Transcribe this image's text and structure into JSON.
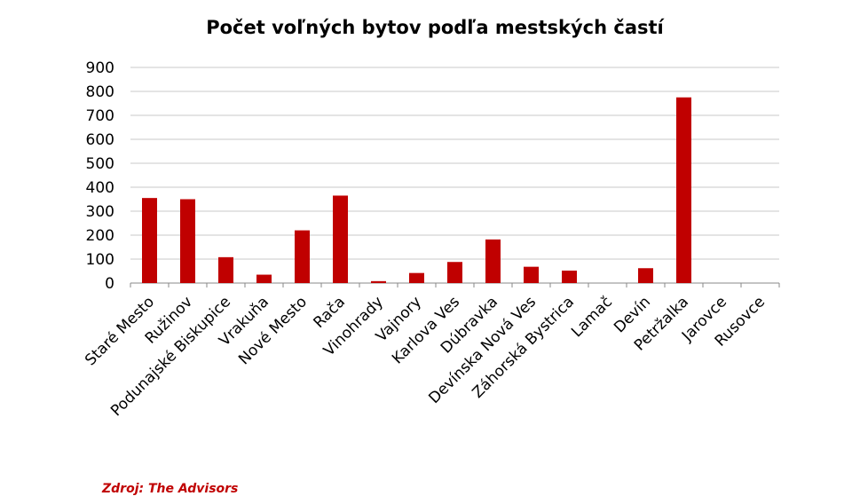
{
  "chart_data": {
    "type": "bar",
    "title": "Počet voľných bytov podľa mestských častí",
    "categories": [
      "Staré Mesto",
      "Ružinov",
      "Podunajské Biskupice",
      "Vrakuňa",
      "Nové Mesto",
      "Rača",
      "Vinohrady",
      "Vajnory",
      "Karlova Ves",
      "Dúbravka",
      "Devínska Nová Ves",
      "Záhorská Bystrica",
      "Lamač",
      "Devín",
      "Petržalka",
      "Jarovce",
      "Rusovce"
    ],
    "values": [
      355,
      350,
      108,
      35,
      220,
      365,
      8,
      42,
      88,
      182,
      68,
      52,
      0,
      62,
      775,
      0,
      0
    ],
    "color": "#c00000",
    "ylim": [
      0,
      900
    ],
    "yticks": [
      0,
      100,
      200,
      300,
      400,
      500,
      600,
      700,
      800,
      900
    ],
    "grid": true,
    "source": "Zdroj: The Advisors"
  }
}
